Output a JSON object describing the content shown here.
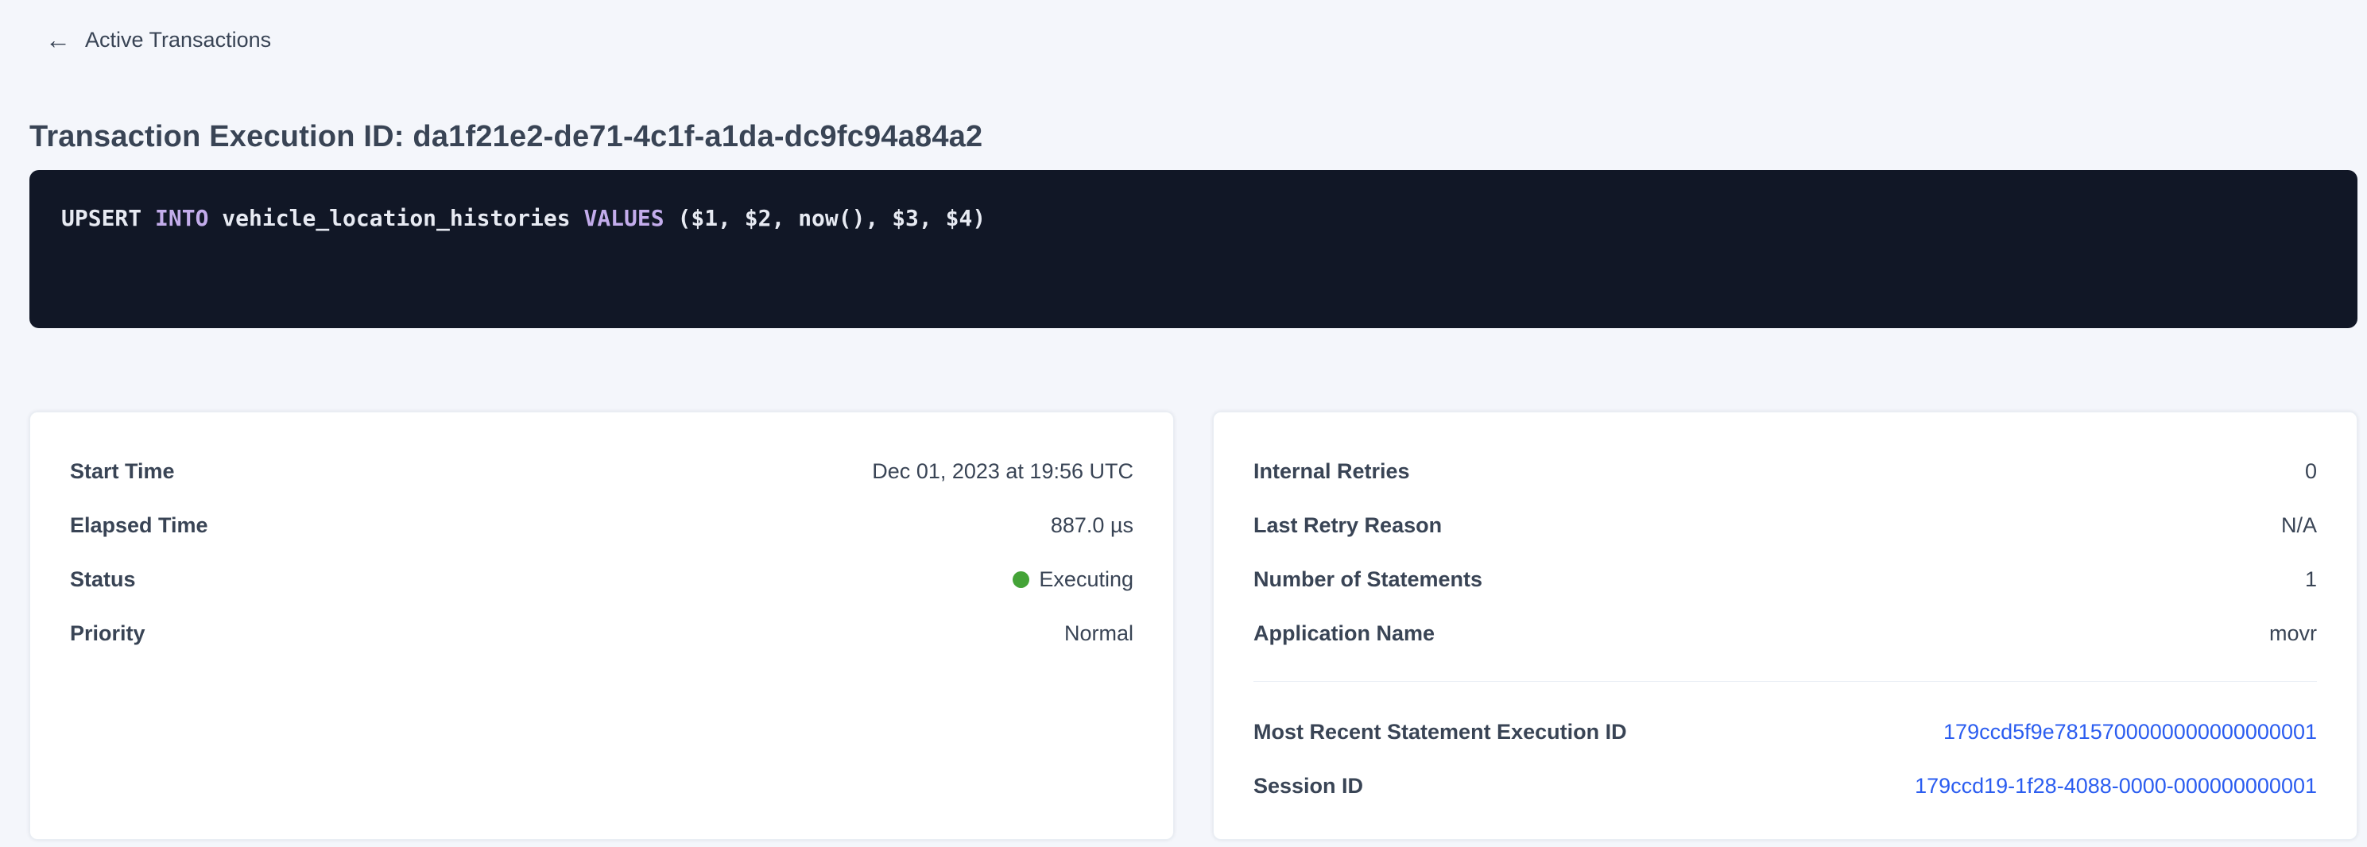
{
  "colors": {
    "text": "#394455",
    "status_green": "#44a337",
    "link_blue": "#2b5df0",
    "keyword_purple": "#c3aceb",
    "code_background": "#111726",
    "page_background": "#f4f6fb"
  },
  "header": {
    "back_icon": "left-arrow",
    "back_label": "Active Transactions"
  },
  "page_title": "Transaction Execution ID: da1f21e2-de71-4c1f-a1da-dc9fc94a84a2",
  "sql_statement": {
    "full_text": "UPSERT INTO vehicle_location_histories VALUES ($1, $2, now(), $3, $4)",
    "tokens": [
      {
        "text": "UPSERT ",
        "type": "plain"
      },
      {
        "text": "INTO",
        "type": "keyword"
      },
      {
        "text": " vehicle_location_histories ",
        "type": "plain"
      },
      {
        "text": "VALUES",
        "type": "keyword"
      },
      {
        "text": " ($1, $2, now(), $3, $4)",
        "type": "plain"
      }
    ]
  },
  "left_card": {
    "rows": [
      {
        "label": "Start Time",
        "value": "Dec 01, 2023 at 19:56 UTC",
        "type": "text"
      },
      {
        "label": "Elapsed Time",
        "value": "887.0 µs",
        "type": "text"
      },
      {
        "label": "Status",
        "value": "Executing",
        "type": "status"
      },
      {
        "label": "Priority",
        "value": "Normal",
        "type": "text"
      }
    ]
  },
  "right_card": {
    "top_rows": [
      {
        "label": "Internal Retries",
        "value": "0",
        "type": "text"
      },
      {
        "label": "Last Retry Reason",
        "value": "N/A",
        "type": "text"
      },
      {
        "label": "Number of Statements",
        "value": "1",
        "type": "text"
      },
      {
        "label": "Application Name",
        "value": "movr",
        "type": "text"
      }
    ],
    "bottom_rows": [
      {
        "label": "Most Recent Statement Execution ID",
        "value": "179ccd5f9e7815700000000000000001",
        "type": "link"
      },
      {
        "label": "Session ID",
        "value": "179ccd19-1f28-4088-0000-000000000001",
        "type": "link"
      }
    ]
  }
}
